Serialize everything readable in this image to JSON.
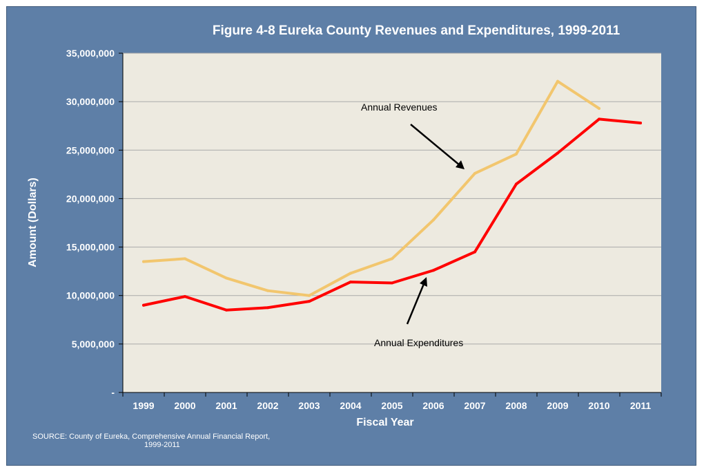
{
  "chart_data": {
    "type": "line",
    "title": "Figure 4-8 Eureka County Revenues and Expenditures, 1999-2011",
    "xlabel": "Fiscal Year",
    "ylabel": "Amount (Dollars)",
    "ylim": [
      0,
      35000000
    ],
    "yticks": [
      {
        "value": 0,
        "label": "-"
      },
      {
        "value": 5000000,
        "label": "5,000,000"
      },
      {
        "value": 10000000,
        "label": "10,000,000"
      },
      {
        "value": 15000000,
        "label": "15,000,000"
      },
      {
        "value": 20000000,
        "label": "20,000,000"
      },
      {
        "value": 25000000,
        "label": "25,000,000"
      },
      {
        "value": 30000000,
        "label": "30,000,000"
      },
      {
        "value": 35000000,
        "label": "35,000,000"
      }
    ],
    "categories": [
      "1999",
      "2000",
      "2001",
      "2002",
      "2003",
      "2004",
      "2005",
      "2006",
      "2007",
      "2008",
      "2009",
      "2010",
      "2011"
    ],
    "series": [
      {
        "name": "Annual Revenues",
        "color": "#f2c66e",
        "values": [
          13500000,
          13800000,
          11800000,
          10500000,
          10000000,
          12300000,
          13800000,
          17800000,
          22600000,
          24600000,
          32100000,
          29300000,
          null
        ]
      },
      {
        "name": "Annual Expenditures",
        "color": "#ff0000",
        "values": [
          9000000,
          9900000,
          8500000,
          8750000,
          9400000,
          11400000,
          11300000,
          12600000,
          14500000,
          21500000,
          24700000,
          28200000,
          27800000
        ]
      }
    ],
    "grid": true,
    "plot_background": "#edeae0",
    "annotations": [
      {
        "text": "Annual Revenues",
        "series": 0
      },
      {
        "text": "Annual Expenditures",
        "series": 1
      }
    ],
    "source": [
      "SOURCE: County of Eureka, Comprehensive Annual Financial Report,",
      "1999-2011"
    ]
  }
}
